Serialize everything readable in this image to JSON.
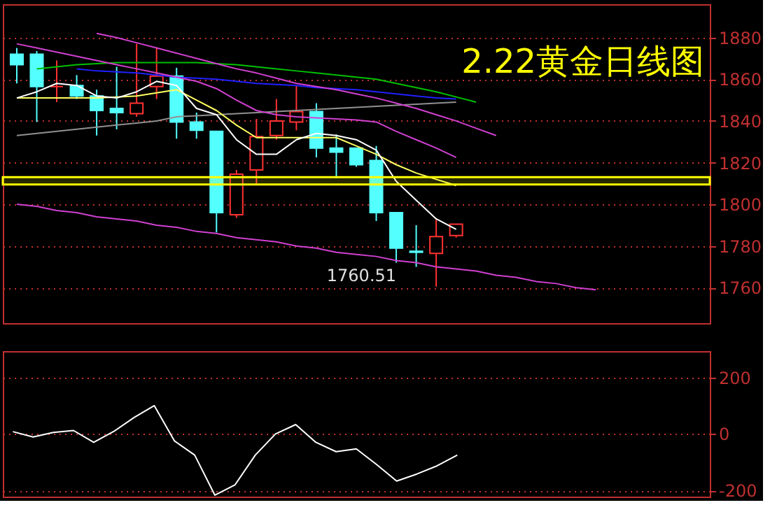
{
  "chart_data": [
    {
      "type": "candlestick",
      "title": "2.22黄金日线图",
      "categories": [
        null,
        null,
        null,
        null,
        null,
        null,
        null,
        null,
        null,
        null,
        null,
        null,
        null,
        null,
        null,
        null,
        null,
        null,
        null,
        null,
        null,
        null,
        null,
        null,
        null,
        null,
        null,
        null,
        null,
        null,
        null,
        null,
        null,
        null,
        null
      ],
      "ohlc": [
        [
          1872,
          1875,
          1858,
          1867
        ],
        [
          1872,
          1873.5,
          1839.5,
          1856.5
        ],
        [
          1856.5,
          1869,
          1849,
          1856.5
        ],
        [
          1857,
          1862,
          1850.5,
          1852
        ],
        [
          1852,
          1855,
          1833,
          1845
        ],
        [
          1846,
          1866,
          1836,
          1844
        ],
        [
          1843.5,
          1877,
          1842,
          1848.5
        ],
        [
          1856.5,
          1875,
          1850.5,
          1861.5
        ],
        [
          1861.5,
          1865.5,
          1831.5,
          1839.5
        ],
        [
          1839.5,
          1844,
          1831.5,
          1835.5
        ],
        [
          1835,
          1835,
          1786.5,
          1796
        ],
        [
          1795,
          1816.5,
          1793.5,
          1814.5
        ],
        [
          1816.5,
          1841,
          1810,
          1832.5
        ],
        [
          1833,
          1850.5,
          1831,
          1840
        ],
        [
          1839.5,
          1857,
          1835.5,
          1844.5
        ],
        [
          1844.5,
          1848.5,
          1822.5,
          1827
        ],
        [
          1827,
          1833.5,
          1812.5,
          1825
        ],
        [
          1827,
          1827,
          1818,
          1819
        ],
        [
          1821,
          1828,
          1792,
          1796
        ],
        [
          1796,
          1796,
          1772,
          1779
        ],
        [
          1777.5,
          1790,
          1770,
          1777
        ],
        [
          1776.5,
          1793,
          1760.51,
          1784.5
        ],
        [
          1785,
          1790.5,
          1784,
          1790.5
        ],
        null,
        null,
        null,
        null,
        null,
        null,
        null,
        null,
        null,
        null,
        null,
        null
      ],
      "colors": [
        "#54ffff",
        "#54ffff",
        "#ff3232",
        "#54ffff",
        "#54ffff",
        "#54ffff",
        "#ff3232",
        "#ff3232",
        "#54ffff",
        "#54ffff",
        "#54ffff",
        "#ff3232",
        "#ff3232",
        "#ff3232",
        "#ff3232",
        "#54ffff",
        "#54ffff",
        "#54ffff",
        "#54ffff",
        "#54ffff",
        "#54ffff",
        "#ff3232",
        "#ff3232",
        null,
        null,
        null,
        null,
        null,
        null,
        null,
        null,
        null,
        null,
        null,
        null
      ],
      "series": [
        {
          "type": "line",
          "color": "#00c000",
          "values": [
            null,
            1865,
            1866,
            1867,
            1867.5,
            1868,
            1868,
            1868,
            1868,
            1868,
            1867.5,
            1867,
            1866,
            1865,
            1864,
            1863,
            1862,
            1861,
            1860,
            1858,
            1856,
            1854,
            1851.5,
            1849,
            null,
            null,
            null,
            null,
            null,
            null,
            null,
            null,
            null,
            null,
            null
          ]
        },
        {
          "type": "line",
          "color": "#2020ff",
          "values": [
            null,
            null,
            null,
            1865,
            1864,
            1863.5,
            1863,
            1862,
            1861,
            1860.5,
            1860,
            1859,
            1858,
            1857.5,
            1857,
            1856,
            1855.5,
            1855,
            1854,
            1853,
            1852,
            1851,
            1850.5,
            null,
            null,
            null,
            null,
            null,
            null,
            null,
            null,
            null,
            null,
            null,
            null
          ]
        },
        {
          "type": "line",
          "color": "#909090",
          "values": [
            1833,
            1834,
            1835,
            1836,
            1837,
            1838,
            1839,
            1840,
            1842,
            1842.5,
            1843,
            1843.5,
            1844,
            1844.5,
            1845,
            1845.5,
            1846,
            1846.5,
            1847,
            1847.5,
            1848,
            1848.5,
            1849,
            null,
            null,
            null,
            null,
            null,
            null,
            null,
            null,
            null,
            null,
            null,
            null
          ]
        },
        {
          "type": "line",
          "color": "#d040d0",
          "values": [
            null,
            null,
            null,
            null,
            1882,
            1880,
            1877.5,
            1875,
            1872.5,
            1870,
            1867.5,
            1865,
            1863,
            1860.5,
            1858,
            1856.5,
            1855,
            1853,
            1851,
            1848.5,
            1846,
            1843,
            1840,
            1836.5,
            1833,
            null,
            null,
            null,
            null,
            null,
            null,
            null,
            null,
            null,
            null
          ]
        },
        {
          "type": "line",
          "color": "#d040d0",
          "values": [
            1877,
            1875,
            1873,
            1871,
            1869,
            1867,
            1865,
            1863,
            1861,
            1859,
            1855.5,
            1850,
            1845,
            1843,
            1842,
            1841.5,
            1841,
            1840.5,
            1839.5,
            1835,
            1831,
            1827,
            1822.5,
            null,
            null,
            null,
            null,
            null,
            null,
            null,
            null,
            null,
            null,
            null,
            null
          ]
        },
        {
          "type": "line",
          "color": "#d040d0",
          "values": [
            1800,
            1799,
            1797,
            1796,
            1794,
            1793,
            1792,
            1790,
            1789,
            1787,
            1786,
            1784,
            1783,
            1782,
            1780,
            1779,
            1777,
            1776,
            1775,
            1773,
            1772,
            1770,
            1769,
            1768,
            1766,
            1765,
            1763,
            1762,
            1760,
            1759,
            null,
            null,
            null,
            null,
            null
          ]
        },
        {
          "type": "line",
          "color": "#ffff60",
          "values": [
            1851,
            1851,
            1851,
            1851,
            1851,
            1851.5,
            1852,
            1853.5,
            1855,
            1850,
            1845,
            1838,
            1832,
            1832,
            1832,
            1832,
            1832,
            1828,
            1824,
            1819,
            1815,
            1812,
            1809,
            null,
            null,
            null,
            null,
            null,
            null,
            null,
            null,
            null,
            null,
            null,
            null
          ]
        },
        {
          "type": "line",
          "color": "#ffffff",
          "values": [
            1851,
            1854,
            1858,
            1857,
            1852,
            1851,
            1854,
            1859,
            1857,
            1846,
            1843,
            1831,
            1824,
            1824,
            1831,
            1834,
            1833,
            1831,
            1826,
            1811,
            1802,
            1793,
            1788,
            null,
            null,
            null,
            null,
            null,
            null,
            null,
            null,
            null,
            null,
            null,
            null
          ]
        }
      ],
      "bands": [
        {
          "axis": "y",
          "from": 1809.5,
          "to": 1813,
          "color": "#ffff00"
        }
      ],
      "annotations": [
        "1760.51"
      ],
      "ylim": [
        1743,
        1896
      ],
      "yticks": [
        1760,
        1780,
        1800,
        1820,
        1840,
        1860,
        1880
      ],
      "grid": "y",
      "tick_labels": "y"
    },
    {
      "type": "line",
      "categories": [
        null,
        null,
        null,
        null,
        null,
        null,
        null,
        null,
        null,
        null,
        null,
        null,
        null,
        null,
        null,
        null,
        null,
        null,
        null,
        null,
        null,
        null,
        null,
        null,
        null,
        null,
        null,
        null,
        null,
        null,
        null,
        null,
        null,
        null,
        null
      ],
      "series": [
        {
          "color": "#ffffff",
          "values": [
            8,
            -11,
            5,
            12,
            -30,
            9,
            58,
            100,
            -25,
            -75,
            -217,
            -180,
            -75,
            0,
            33,
            -30,
            -63,
            -53,
            -108,
            -167,
            -142,
            -113,
            -75,
            null,
            null,
            null,
            null,
            null,
            null,
            null,
            null,
            null,
            null,
            null,
            null
          ]
        }
      ],
      "ylim": [
        -222,
        293
      ],
      "yticks": [
        -200,
        0,
        200
      ],
      "grid": "y",
      "tick_labels": "y"
    }
  ]
}
